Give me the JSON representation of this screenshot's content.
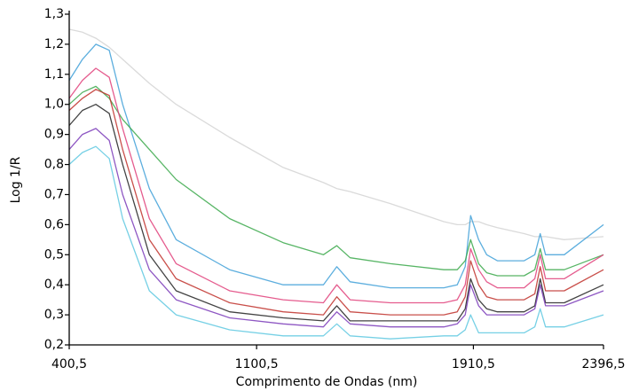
{
  "chart_data": {
    "type": "line",
    "x_label": "Comprimento de Ondas (nm)",
    "y_label": "Log 1/R",
    "xlim": [
      400.5,
      2396.5
    ],
    "ylim": [
      0.2,
      1.3
    ],
    "xticks": [
      {
        "value": 400.5,
        "label": "400,5"
      },
      {
        "value": 1100.5,
        "label": "1100,5"
      },
      {
        "value": 1910.5,
        "label": "1910,5"
      },
      {
        "value": 2396.5,
        "label": "2396,5"
      }
    ],
    "yticks": [
      {
        "value": 0.2,
        "label": "0,2"
      },
      {
        "value": 0.3,
        "label": "0,3"
      },
      {
        "value": 0.4,
        "label": "0,4"
      },
      {
        "value": 0.5,
        "label": "0,5"
      },
      {
        "value": 0.6,
        "label": "0,6"
      },
      {
        "value": 0.7,
        "label": "0,7"
      },
      {
        "value": 0.8,
        "label": "0,8"
      },
      {
        "value": 0.9,
        "label": "0,9"
      },
      {
        "value": 1.0,
        "label": "1,0"
      },
      {
        "value": 1.1,
        "label": "1,1"
      },
      {
        "value": 1.2,
        "label": "1,2"
      },
      {
        "value": 1.3,
        "label": "1,3"
      }
    ],
    "x": [
      400.5,
      450,
      500,
      550,
      600,
      700,
      800,
      1000,
      1200,
      1350,
      1400,
      1450,
      1600,
      1800,
      1850,
      1880,
      1900,
      1930,
      1960,
      2000,
      2100,
      2140,
      2160,
      2180,
      2250,
      2396.5
    ],
    "series": [
      {
        "color": "#d4d4d4",
        "values": [
          1.25,
          1.24,
          1.22,
          1.19,
          1.15,
          1.07,
          1.0,
          0.89,
          0.79,
          0.74,
          0.72,
          0.71,
          0.67,
          0.61,
          0.6,
          0.6,
          0.61,
          0.61,
          0.6,
          0.59,
          0.57,
          0.56,
          0.56,
          0.56,
          0.55,
          0.56
        ]
      },
      {
        "color": "#3fa0d8",
        "values": [
          1.08,
          1.15,
          1.2,
          1.18,
          1.0,
          0.72,
          0.55,
          0.45,
          0.4,
          0.4,
          0.46,
          0.41,
          0.39,
          0.39,
          0.4,
          0.46,
          0.63,
          0.55,
          0.5,
          0.48,
          0.48,
          0.5,
          0.57,
          0.5,
          0.5,
          0.6
        ]
      },
      {
        "color": "#3aa84a",
        "values": [
          1.0,
          1.04,
          1.06,
          1.02,
          0.95,
          0.85,
          0.75,
          0.62,
          0.54,
          0.5,
          0.53,
          0.49,
          0.47,
          0.45,
          0.45,
          0.48,
          0.55,
          0.47,
          0.44,
          0.43,
          0.43,
          0.45,
          0.52,
          0.45,
          0.45,
          0.5
        ]
      },
      {
        "color": "#e0407a",
        "values": [
          1.02,
          1.08,
          1.12,
          1.09,
          0.92,
          0.62,
          0.47,
          0.38,
          0.35,
          0.34,
          0.4,
          0.35,
          0.34,
          0.34,
          0.35,
          0.4,
          0.52,
          0.45,
          0.41,
          0.39,
          0.39,
          0.42,
          0.5,
          0.42,
          0.42,
          0.5
        ]
      },
      {
        "color": "#c0302a",
        "values": [
          0.98,
          1.02,
          1.05,
          1.03,
          0.85,
          0.55,
          0.42,
          0.34,
          0.31,
          0.3,
          0.36,
          0.31,
          0.3,
          0.3,
          0.31,
          0.36,
          0.48,
          0.4,
          0.36,
          0.35,
          0.35,
          0.37,
          0.46,
          0.38,
          0.38,
          0.45
        ]
      },
      {
        "color": "#222222",
        "values": [
          0.93,
          0.98,
          1.0,
          0.97,
          0.8,
          0.5,
          0.38,
          0.31,
          0.29,
          0.28,
          0.33,
          0.28,
          0.28,
          0.28,
          0.28,
          0.32,
          0.42,
          0.35,
          0.32,
          0.31,
          0.31,
          0.33,
          0.42,
          0.34,
          0.34,
          0.4
        ]
      },
      {
        "color": "#7a3ab8",
        "values": [
          0.85,
          0.9,
          0.92,
          0.88,
          0.7,
          0.45,
          0.35,
          0.29,
          0.27,
          0.26,
          0.31,
          0.27,
          0.26,
          0.26,
          0.27,
          0.3,
          0.4,
          0.33,
          0.3,
          0.3,
          0.3,
          0.32,
          0.4,
          0.33,
          0.33,
          0.38
        ]
      },
      {
        "color": "#5ec8e0",
        "values": [
          0.8,
          0.84,
          0.86,
          0.82,
          0.62,
          0.38,
          0.3,
          0.25,
          0.23,
          0.23,
          0.27,
          0.23,
          0.22,
          0.23,
          0.23,
          0.25,
          0.3,
          0.24,
          0.24,
          0.24,
          0.24,
          0.26,
          0.32,
          0.26,
          0.26,
          0.3
        ]
      }
    ]
  }
}
